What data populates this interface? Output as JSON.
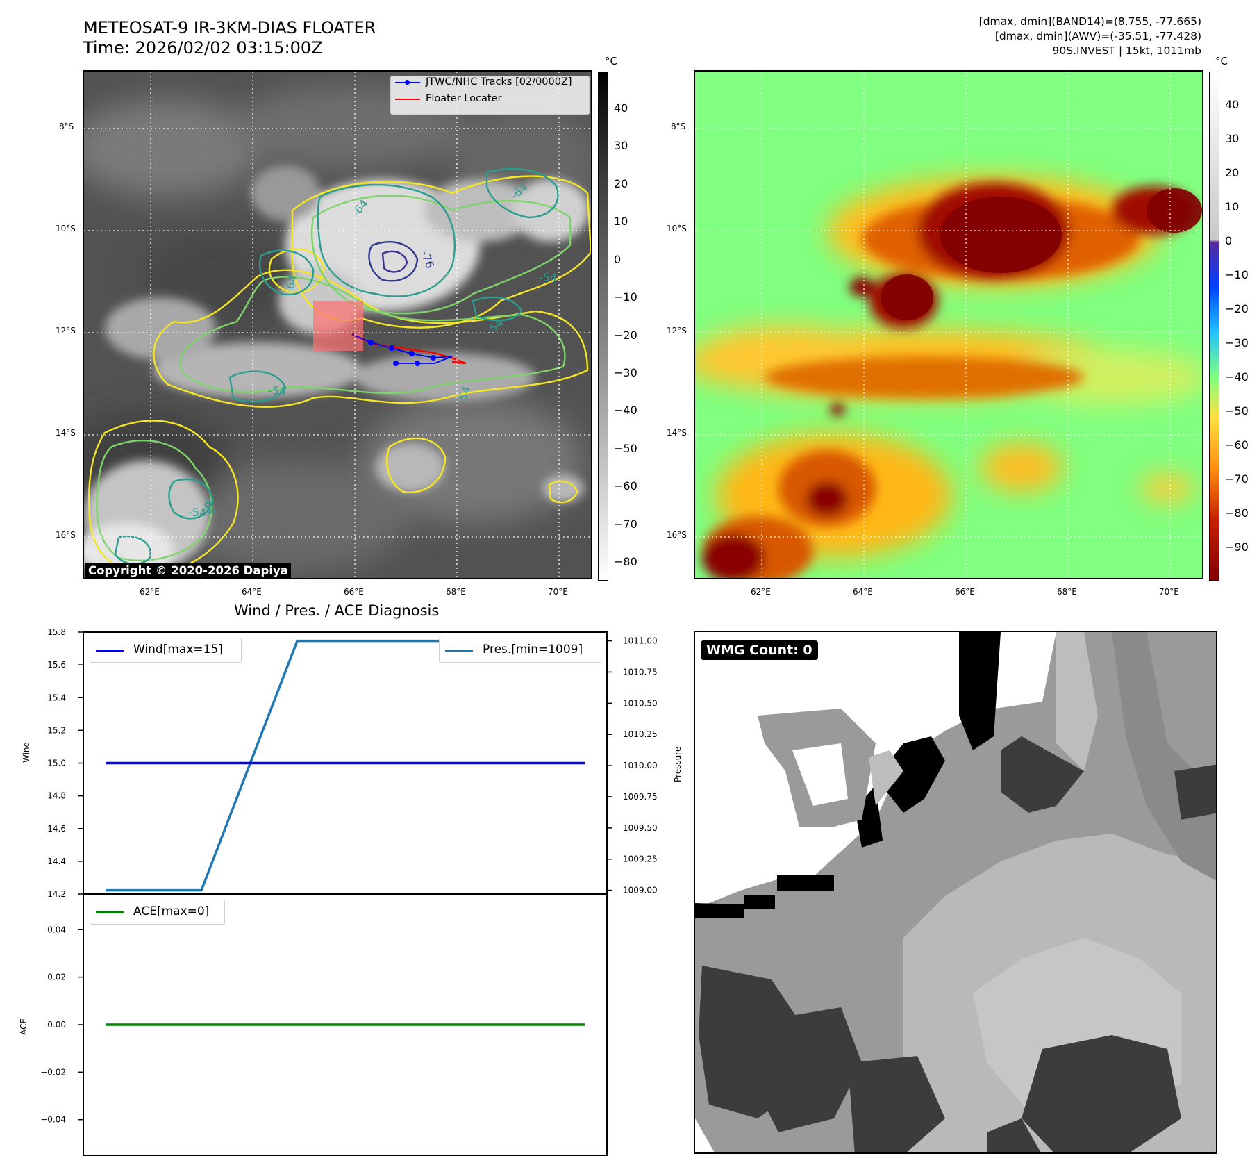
{
  "header": {
    "title_line1": "METEOSAT-9 IR-3KM-DIAS FLOATER",
    "title_line2": "Time: 2026/02/02 03:15:00Z",
    "info_line1": "[dmax, dmin](BAND14)=(8.755, -77.665)",
    "info_line2": "[dmax, dmin](AWV)=(-35.51, -77.428)",
    "info_line3": "90S.INVEST | 15kt, 1011mb"
  },
  "ir_panel": {
    "legend": [
      "JTWC/NHC Tracks [02/0000Z]",
      "Floater Locater"
    ],
    "legend_colors": [
      "#0000ff",
      "#ff0000"
    ],
    "copyright": "Copyright © 2020-2026 Dapiya",
    "contour_labels": [
      "-64",
      "-76",
      "-64",
      "-54",
      "-64",
      "-54",
      "-64",
      "-54",
      "-54",
      "-54"
    ],
    "lat_ticks": [
      "8°S",
      "10°S",
      "12°S",
      "14°S",
      "16°S"
    ],
    "lon_ticks": [
      "62°E",
      "64°E",
      "66°E",
      "68°E",
      "70°E"
    ],
    "colorbar_unit": "°C",
    "colorbar_ticks": [
      "40",
      "30",
      "20",
      "10",
      "0",
      "−10",
      "−20",
      "−30",
      "−40",
      "−50",
      "−60",
      "−70",
      "−80"
    ]
  },
  "wv_panel": {
    "lat_ticks": [
      "8°S",
      "10°S",
      "12°S",
      "14°S",
      "16°S"
    ],
    "lon_ticks": [
      "62°E",
      "64°E",
      "66°E",
      "68°E",
      "70°E"
    ],
    "colorbar_unit": "°C",
    "colorbar_ticks": [
      "40",
      "30",
      "20",
      "10",
      "0",
      "−10",
      "−20",
      "−30",
      "−40",
      "−50",
      "−60",
      "−70",
      "−80",
      "−90"
    ]
  },
  "diagnosis": {
    "title": "Wind / Pres. / ACE Diagnosis",
    "wind_ylabel": "Wind",
    "pres_ylabel": "Pressure",
    "ace_ylabel": "ACE",
    "wind_ticks": [
      "15.8",
      "15.6",
      "15.4",
      "15.2",
      "15.0",
      "14.8",
      "14.6",
      "14.4",
      "14.2"
    ],
    "pres_ticks": [
      "1011.00",
      "1010.75",
      "1010.50",
      "1010.25",
      "1010.00",
      "1009.75",
      "1009.50",
      "1009.25",
      "1009.00"
    ],
    "ace_ticks": [
      "0.04",
      "0.02",
      "0.00",
      "−0.02",
      "−0.04"
    ],
    "wind_legend": "Wind[max=15]",
    "pres_legend": "Pres.[min=1009]",
    "ace_legend": "ACE[max=0]"
  },
  "wmg_panel": {
    "badge": "WMG Count: 0"
  },
  "chart_data": [
    {
      "type": "line",
      "title": "Wind / Pres. / ACE Diagnosis",
      "x": [
        0,
        1,
        2,
        3,
        4,
        5
      ],
      "series": [
        {
          "name": "Wind[max=15]",
          "axis": "left",
          "color": "#0000ff",
          "values": [
            15,
            15,
            15,
            15,
            15,
            15
          ]
        },
        {
          "name": "Pres.[min=1009]",
          "axis": "right",
          "color": "#1f77b4",
          "values": [
            1009,
            1009,
            1011,
            1011,
            1011,
            1011
          ]
        }
      ],
      "ylabel": "Wind",
      "ylim": [
        14.2,
        15.8
      ],
      "y2label": "Pressure",
      "y2lim": [
        1008.97,
        1011.07
      ]
    },
    {
      "type": "line",
      "x": [
        0,
        1,
        2,
        3,
        4,
        5
      ],
      "series": [
        {
          "name": "ACE[max=0]",
          "color": "#008000",
          "values": [
            0,
            0,
            0,
            0,
            0,
            0
          ]
        }
      ],
      "ylabel": "ACE",
      "ylim": [
        -0.055,
        0.055
      ]
    }
  ]
}
